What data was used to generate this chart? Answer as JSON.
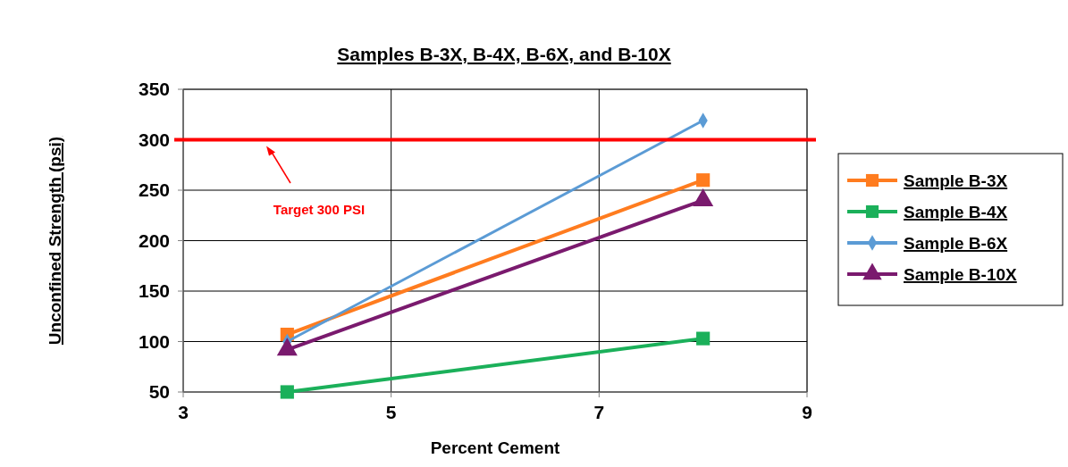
{
  "chart_data": {
    "type": "line",
    "title": "Samples B-3X, B-4X, B-6X, and B-10X",
    "xlabel": "Percent Cement",
    "ylabel": "Unconfined Strength (psi)",
    "x": [
      4,
      8
    ],
    "series": [
      {
        "name": "Sample B-3X",
        "color": "#ff7c1f",
        "values": [
          107,
          260
        ],
        "marker": "square"
      },
      {
        "name": "Sample B-4X",
        "color": "#1bb05a",
        "values": [
          50,
          103
        ],
        "marker": "square"
      },
      {
        "name": "Sample B-6X",
        "color": "#5b9bd5",
        "values": [
          100,
          319
        ],
        "marker": "diamond"
      },
      {
        "name": "Sample B-10X",
        "color": "#7a1a6e",
        "values": [
          92,
          240
        ],
        "marker": "triangle"
      }
    ],
    "xlim": [
      3,
      9
    ],
    "xticks": [
      3,
      5,
      7,
      9
    ],
    "ylim": [
      50,
      350
    ],
    "yticks": [
      50,
      100,
      150,
      200,
      250,
      300,
      350
    ],
    "grid": true,
    "legend": "right",
    "ref_lines": [
      {
        "axis": "y",
        "value": 300,
        "label": "Target 300 PSI",
        "color": "#ff0000"
      }
    ]
  }
}
